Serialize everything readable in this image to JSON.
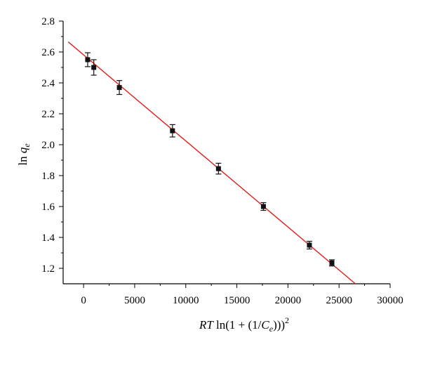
{
  "chart_data": {
    "type": "scatter",
    "title": "",
    "xlabel": {
      "part1": "RT",
      "part2": " ln(1 + (1/",
      "part3": "C",
      "part4": "e",
      "part5": ")))",
      "part6": "2"
    },
    "ylabel": {
      "part1": "ln ",
      "part2": "q",
      "part3": "e"
    },
    "xlim": [
      -2000,
      30000
    ],
    "ylim": [
      1.1,
      2.8
    ],
    "xticks": [
      0,
      5000,
      10000,
      15000,
      20000,
      25000,
      30000
    ],
    "yticks": [
      1.2,
      1.4,
      1.6,
      1.8,
      2.0,
      2.2,
      2.4,
      2.6,
      2.8
    ],
    "xtick_labels": [
      "0",
      "5000",
      "10000",
      "15000",
      "20000",
      "25000",
      "30000"
    ],
    "ytick_labels": [
      "1.2",
      "1.4",
      "1.6",
      "1.8",
      "2.0",
      "2.2",
      "2.4",
      "2.6",
      "2.8"
    ],
    "points": [
      {
        "x": 400,
        "y": 2.55,
        "err": 0.045
      },
      {
        "x": 1000,
        "y": 2.5,
        "err": 0.05
      },
      {
        "x": 3500,
        "y": 2.37,
        "err": 0.045
      },
      {
        "x": 8700,
        "y": 2.09,
        "err": 0.04
      },
      {
        "x": 13200,
        "y": 1.845,
        "err": 0.035
      },
      {
        "x": 17600,
        "y": 1.6,
        "err": 0.025
      },
      {
        "x": 22100,
        "y": 1.35,
        "err": 0.025
      },
      {
        "x": 24300,
        "y": 1.235,
        "err": 0.02
      }
    ],
    "fit_line": {
      "x": [
        -1500,
        26600
      ],
      "y": [
        2.665,
        1.1
      ]
    },
    "grid": false,
    "colors": {
      "points": "#111111",
      "fit_line": "#e0201b",
      "axes": "#000000"
    }
  }
}
